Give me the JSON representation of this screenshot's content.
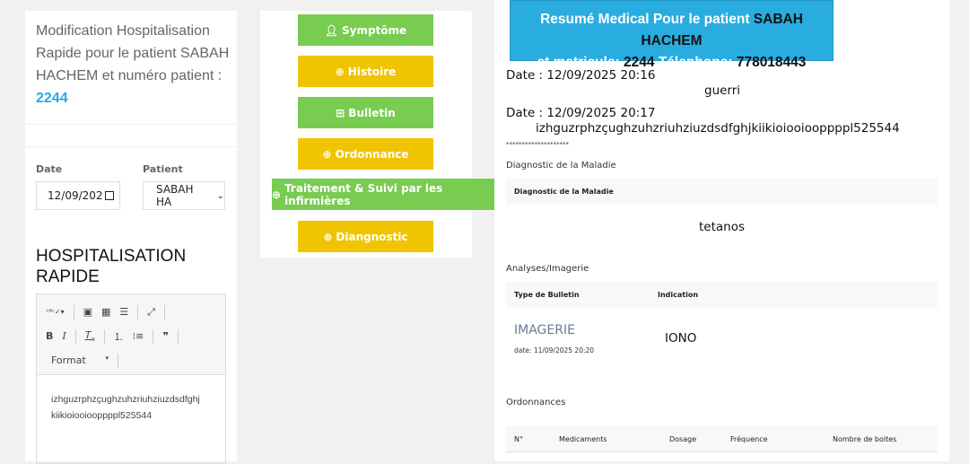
{
  "left": {
    "title_prefix": "Modification Hospitalisation Rapide pour le patient SABAH HACHEM et numéro patient :",
    "patient_number": "2244",
    "date_label": "Date",
    "date_value": "12/09/202",
    "patient_label": "Patient",
    "patient_value": "SABAH HA",
    "section_title": "HOSPITALISATION RAPIDE",
    "editor": {
      "format_label": "Format",
      "content_line1": "izhguzrphzçughzuhzriuhziuzdsdfghj",
      "content_line2": "kiikioiooiooppppl525544"
    }
  },
  "buttons": [
    {
      "label": "Symptôme",
      "icon": "user-icon",
      "color": "#78cc50"
    },
    {
      "label": "Histoire",
      "icon": "plus-circle-icon",
      "color": "#f0c400"
    },
    {
      "label": "Bulletin",
      "icon": "medkit-icon",
      "color": "#78cc50"
    },
    {
      "label": "Ordonnance",
      "icon": "plus-circle-icon",
      "color": "#f0c400"
    },
    {
      "label": "Traitement & Suivi par les infirmières",
      "icon": "plus-circle-icon",
      "color": "#78cc50"
    },
    {
      "label": "Diangnostic",
      "icon": "plus-circle-icon",
      "color": "#f0c400"
    }
  ],
  "summary": {
    "h1": "Resumé Medical Pour le patient ",
    "name": "SABAH HACHEM",
    "h2": "et matricule: ",
    "matricule": "2244",
    "h3": " Télephone: ",
    "phone": "778018443",
    "entries": [
      {
        "date": "Date : 12/09/2025 20:16",
        "text": "guerri"
      },
      {
        "date": "Date : 12/09/2025 20:17",
        "text": "izhguzrphzçughzuhzriuhziuzdsdfghjkiikioiooiooppppl525544"
      }
    ],
    "stars": "********************",
    "diag_section": "Diagnostic de la Maladie",
    "diag_header": "Diagnostic de la Maladie",
    "diag_value": "tetanos",
    "analyses_section": "Analyses/Imagerie",
    "analyses_headers": [
      "Type de Bulletin",
      "Indication"
    ],
    "analysis_type": "IMAGERIE",
    "analysis_date": "date: 11/09/2025 20:20",
    "analysis_indication": "IONO",
    "ord_section": "Ordonnances",
    "ord_headers": [
      "N°",
      "Medicaments",
      "Dosage",
      "Fréquence",
      "Nombre de boites"
    ]
  },
  "colors": {
    "accent": "#29ade0",
    "green": "#78cc50",
    "yellow": "#f0c400"
  }
}
